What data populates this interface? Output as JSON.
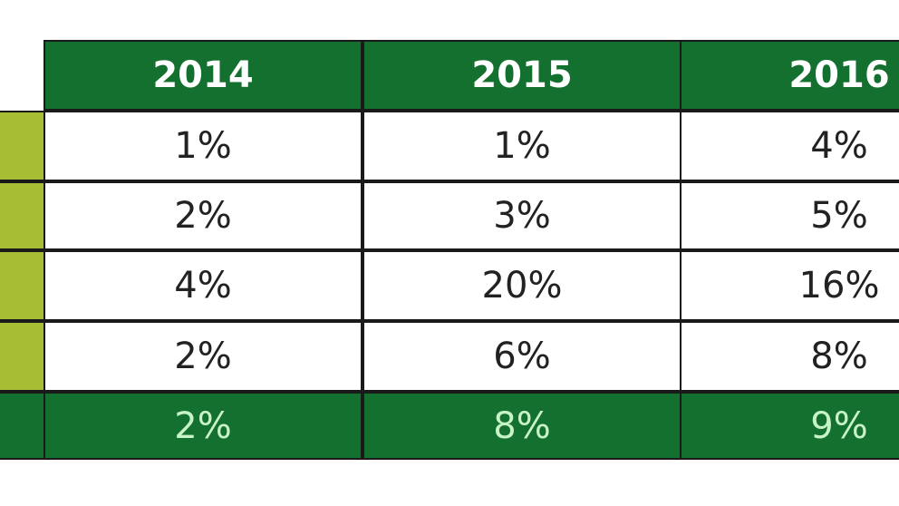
{
  "table": {
    "header": [
      "2014",
      "2015",
      "2016"
    ],
    "rows": [
      [
        "1%",
        "1%",
        "4%"
      ],
      [
        "2%",
        "3%",
        "5%"
      ],
      [
        "4%",
        "20%",
        "16%"
      ],
      [
        "2%",
        "6%",
        "8%"
      ]
    ],
    "footer": [
      "2%",
      "8%",
      "9%"
    ]
  }
}
